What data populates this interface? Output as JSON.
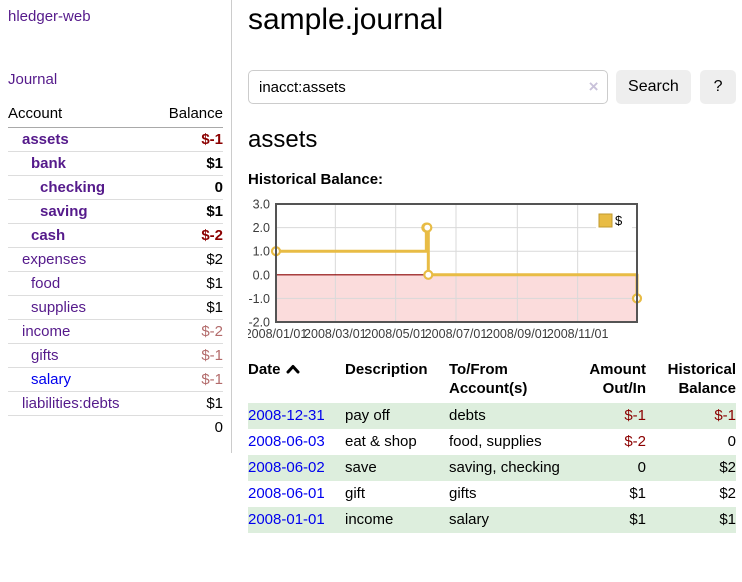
{
  "app_title": "hledger-web",
  "sidebar": {
    "journal_link": "Journal",
    "accounts": {
      "header_account": "Account",
      "header_balance": "Balance",
      "rows": [
        {
          "name": "assets",
          "balance": "$-1",
          "indent": 1,
          "bold": true,
          "balance_style": "neg-dark",
          "link_style": "visited"
        },
        {
          "name": "bank",
          "balance": "$1",
          "indent": 2,
          "bold": true,
          "balance_style": "pos",
          "link_style": "visited"
        },
        {
          "name": "checking",
          "balance": "0",
          "indent": 3,
          "bold": true,
          "balance_style": "pos",
          "link_style": "visited"
        },
        {
          "name": "saving",
          "balance": "$1",
          "indent": 3,
          "bold": true,
          "balance_style": "pos",
          "link_style": "visited"
        },
        {
          "name": "cash",
          "balance": "$-2",
          "indent": 2,
          "bold": true,
          "balance_style": "neg-dark",
          "link_style": "visited"
        },
        {
          "name": "expenses",
          "balance": "$2",
          "indent": 1,
          "bold": false,
          "balance_style": "pos",
          "link_style": "visited"
        },
        {
          "name": "food",
          "balance": "$1",
          "indent": 2,
          "bold": false,
          "balance_style": "pos",
          "link_style": "visited"
        },
        {
          "name": "supplies",
          "balance": "$1",
          "indent": 2,
          "bold": false,
          "balance_style": "pos",
          "link_style": "visited"
        },
        {
          "name": "income",
          "balance": "$-2",
          "indent": 1,
          "bold": false,
          "balance_style": "neg-light",
          "link_style": "visited"
        },
        {
          "name": "gifts",
          "balance": "$-1",
          "indent": 2,
          "bold": false,
          "balance_style": "neg-light",
          "link_style": "visited"
        },
        {
          "name": "salary",
          "balance": "$-1",
          "indent": 2,
          "bold": false,
          "balance_style": "neg-light",
          "link_style": "unvisited"
        },
        {
          "name": "liabilities:debts",
          "balance": "$1",
          "indent": 1,
          "bold": false,
          "balance_style": "pos",
          "link_style": "visited"
        }
      ],
      "total": "0"
    }
  },
  "main": {
    "title": "sample.journal",
    "search": {
      "value": "inacct:assets",
      "clear_icon": "×",
      "search_button": "Search",
      "help_button": "?"
    },
    "account_heading": "assets",
    "chart_title": "Historical Balance:"
  },
  "chart_data": {
    "type": "line",
    "step": true,
    "title": "Historical Balance",
    "series": [
      {
        "name": "$",
        "color": "#e8bc45",
        "points": [
          [
            "2008-01-01",
            1
          ],
          [
            "2008-06-01",
            2
          ],
          [
            "2008-06-02",
            2
          ],
          [
            "2008-06-03",
            0
          ],
          [
            "2008-12-31",
            -1
          ]
        ]
      }
    ],
    "xrange": [
      "2008-01-01",
      "2008-12-31"
    ],
    "ylim": [
      -2,
      3
    ],
    "yticks": [
      3,
      2,
      1,
      0,
      -1,
      -2
    ],
    "ytick_labels": [
      "3.0",
      "2.0",
      "1.0",
      "0.0",
      "-1.0",
      "-2.0"
    ],
    "xticks": [
      "2008-01-01",
      "2008-03-01",
      "2008-05-01",
      "2008-07-01",
      "2008-09-01",
      "2008-11-01"
    ],
    "xtick_labels": [
      "2008/01/01",
      "2008/03/01",
      "2008/05/01",
      "2008/07/01",
      "2008/09/01",
      "2008/11/01"
    ],
    "legend": {
      "label": "$",
      "position": "top-right"
    },
    "grid": true,
    "gridline_color": "#d9d9d9",
    "border_color": "#545454",
    "negative_region_color": "#fbdcdc",
    "zero_line_color": "#8b0000"
  },
  "register": {
    "headers": [
      {
        "label": "Date",
        "sorted": "asc",
        "align": "left"
      },
      {
        "label": "Description",
        "align": "left"
      },
      {
        "label": "To/From Account(s)",
        "align": "left"
      },
      {
        "label": "Amount Out/In",
        "align": "right"
      },
      {
        "label": "Historical Balance",
        "align": "right"
      }
    ],
    "rows": [
      {
        "date": "2008-12-31",
        "description": "pay off",
        "accounts": "debts",
        "amount": "$-1",
        "balance": "$-1",
        "amount_negative": true,
        "balance_negative": true
      },
      {
        "date": "2008-06-03",
        "description": "eat & shop",
        "accounts": "food, supplies",
        "amount": "$-2",
        "balance": "0",
        "amount_negative": true,
        "balance_negative": false
      },
      {
        "date": "2008-06-02",
        "description": "save",
        "accounts": "saving, checking",
        "amount": "0",
        "balance": "$2",
        "amount_negative": false,
        "balance_negative": false
      },
      {
        "date": "2008-06-01",
        "description": "gift",
        "accounts": "gifts",
        "amount": "$1",
        "balance": "$2",
        "amount_negative": false,
        "balance_negative": false
      },
      {
        "date": "2008-01-01",
        "description": "income",
        "accounts": "salary",
        "amount": "$1",
        "balance": "$1",
        "amount_negative": false,
        "balance_negative": false
      }
    ]
  },
  "colors": {
    "link_visited": "#551a8b",
    "link_unvisited": "#0000ee",
    "negative_dark": "#8b0000",
    "negative_light": "#b36b6b",
    "row_stripe_green": "#ddeedd",
    "chart_line": "#e8bc45",
    "button_bg": "#eeeeee"
  }
}
